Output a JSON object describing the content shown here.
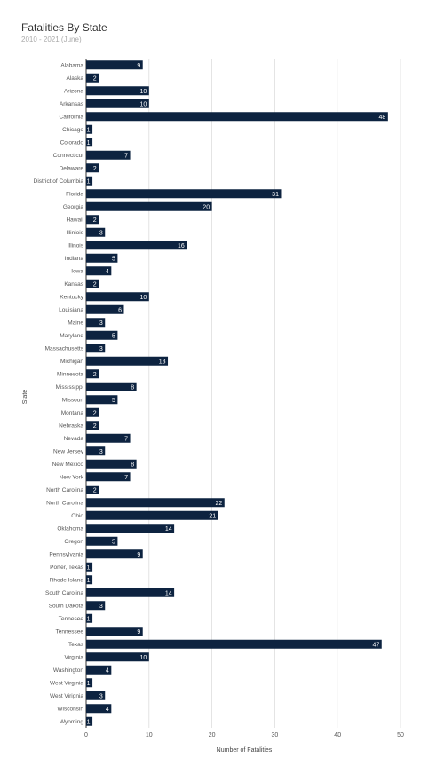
{
  "chart_data": {
    "type": "bar",
    "orientation": "horizontal",
    "title": "Fatalities By State",
    "subtitle": "2010 - 2021 (June)",
    "xlabel": "Number of Fatalities",
    "ylabel": "State",
    "xlim": [
      0,
      50
    ],
    "xticks": [
      0,
      10,
      20,
      30,
      40,
      50
    ],
    "grid": "vertical",
    "bar_color": "#0d2340",
    "categories": [
      "Alabama",
      "Alaska",
      "Arizona",
      "Arkansas",
      "California",
      "Chicago",
      "Colorado",
      "Connecticut",
      "Delaware",
      "District of Columbia",
      "Florida",
      "Georgia",
      "Hawaii",
      "Illiniois",
      "Illinois",
      "Indiana",
      "Iowa",
      "Kansas",
      "Kentucky",
      "Louisiana",
      "Maine",
      "Maryland",
      "Massachusetts",
      "Michigan",
      "Minnesota",
      "Mississippi",
      "Missouri",
      "Montana",
      "Nebraska",
      "Nevada",
      "New Jersey",
      "New Mexico",
      "New York",
      "North Carolina",
      "North Carolina",
      "Ohio",
      "Oklahoma",
      "Oregon",
      "Pennsylvania",
      "Porter, Texas",
      "Rhode Island",
      "South Carolina",
      "South Dakota",
      "Tennesee",
      "Tennessee",
      "Texas",
      "Virginia",
      "Washington",
      "West Virginia",
      "West Virignia",
      "Wisconsin",
      "Wyoming"
    ],
    "values": [
      9,
      2,
      10,
      10,
      48,
      1,
      1,
      7,
      2,
      1,
      31,
      20,
      2,
      3,
      16,
      5,
      4,
      2,
      10,
      6,
      3,
      5,
      3,
      13,
      2,
      8,
      5,
      2,
      2,
      7,
      3,
      8,
      7,
      2,
      22,
      21,
      14,
      5,
      9,
      1,
      1,
      14,
      3,
      1,
      9,
      47,
      10,
      4,
      1,
      3,
      4,
      1
    ]
  }
}
